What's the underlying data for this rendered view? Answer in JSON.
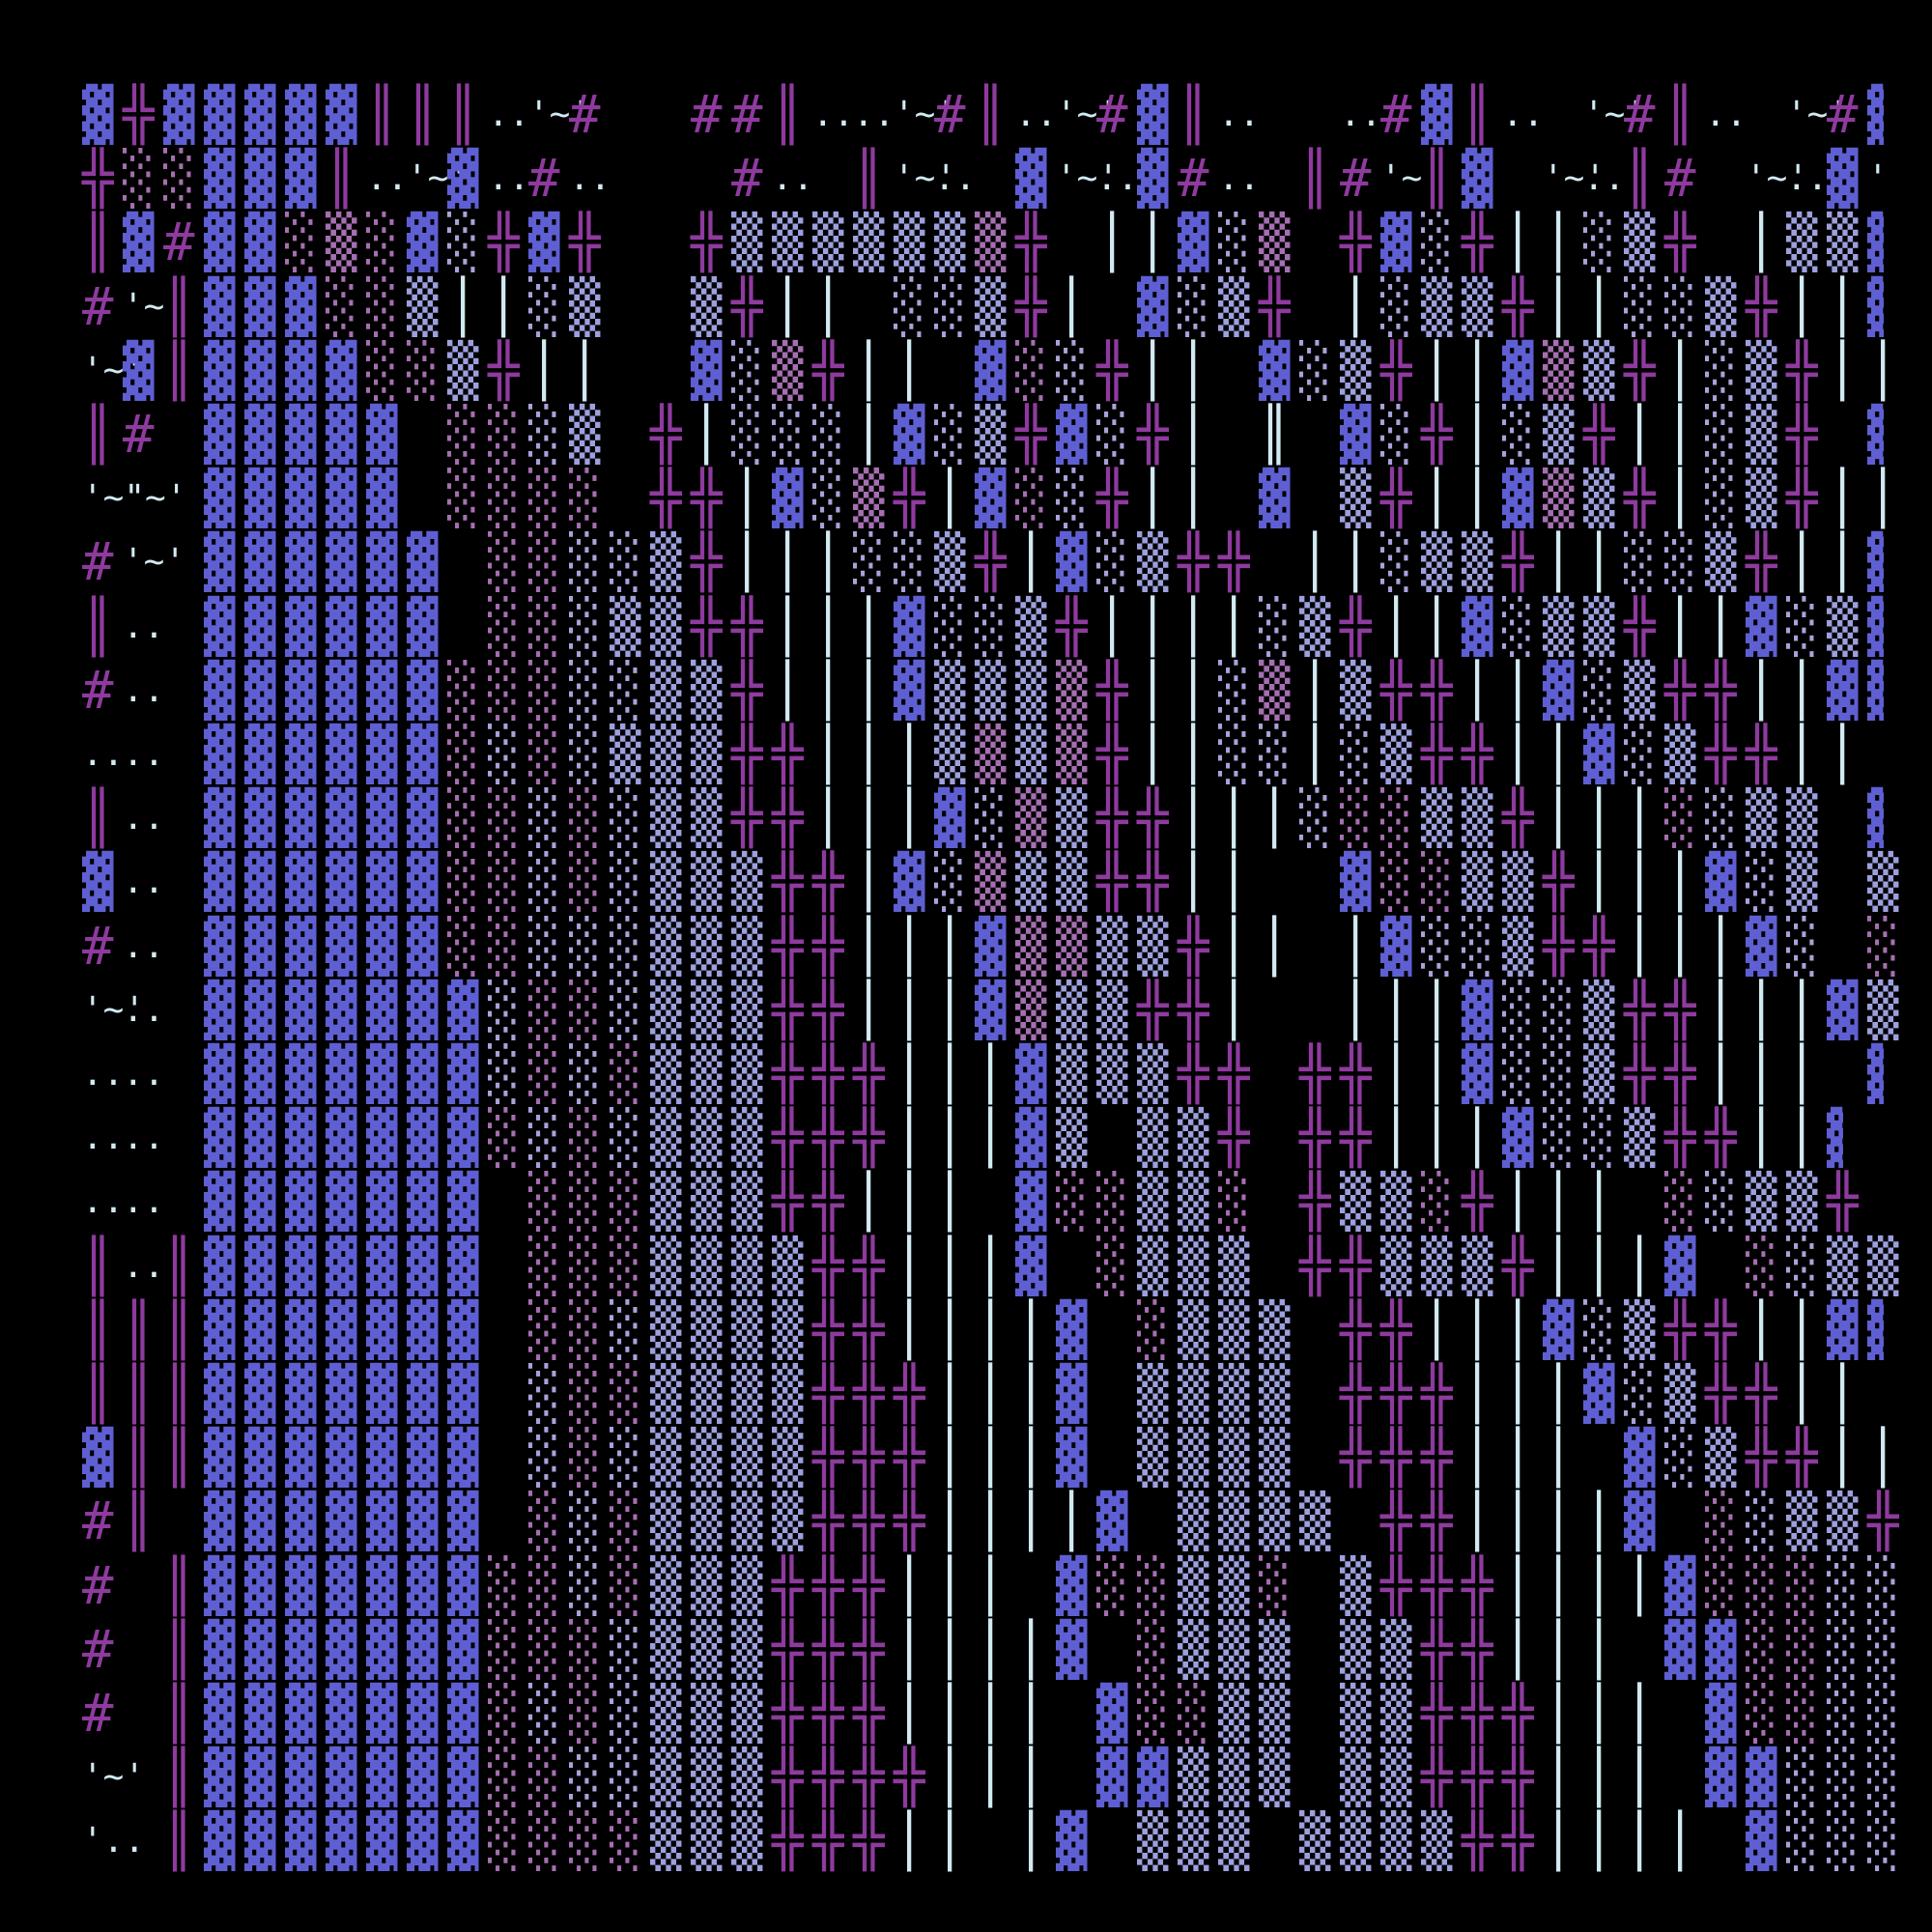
{
  "artwork": {
    "description": "generative-ascii-glyph-grid",
    "background_color": "#000000",
    "palette": {
      "indigo": "#5f5fd4",
      "periwinkle": "#9da0de",
      "lavender": "#a9a3da",
      "mauve": "#a66fb2",
      "magenta": "#8f3a9f",
      "pale_cyan": "#d2eaf2"
    },
    "glyph_legend": {
      "B": {
        "char": "▓",
        "color": "indigo"
      },
      "b": {
        "char": "▓",
        "color": "indigo",
        "clipped_right_margin": true
      },
      "S": {
        "char": "▒",
        "color": "periwinkle"
      },
      "Z": {
        "char": "▒",
        "color": "mauve"
      },
      "L": {
        "char": "░",
        "color": "lavender"
      },
      "R": {
        "char": "░",
        "color": "mauve"
      },
      "X": {
        "char": "╬",
        "color": "magenta"
      },
      "H": {
        "char": "║",
        "color": "magenta"
      },
      "V": {
        "char": "║",
        "color": "pale_cyan"
      },
      "v": {
        "char": "│",
        "color": "pale_cyan"
      },
      "#": {
        "char": "#",
        "color": "magenta"
      },
      "q": {
        "char": "'~'",
        "color": "pale_cyan",
        "small": true
      },
      "Q": {
        "char": "'~\"~'",
        "color": "pale_cyan",
        "small": true
      },
      "d": {
        "char": "..",
        "color": "pale_cyan",
        "small": true
      },
      "a": {
        "char": "'",
        "color": "pale_cyan",
        "small": true
      },
      "j": {
        "char": "'..",
        "color": "pale_cyan",
        "small": true
      }
    },
    "rows": [
      "BXBBBBBHHHdq#--##Hddq#Hdq#BHd--d#BHd-q#Hd-q#b",
      "XRRBBBHdqBd#d---#d-Hqd-BqdB#d-H#qHB-qdH#-qdBa",
      "HB#BBRZRBLXBX--XSSSSSSZX-vvBLZ-XBLXvvLSX-vSSb",
      "#qHBBBRRSvvLS--SXvv-LLSXv-BLSX-vLSSXvvLLSXvvb",
      "qBHBBBBRRSXvv--BLZXvv-BRLXvv-BLSXvvBZSXvLSXvv",
      "H#-BBBBB-RRLS-XvLLLvBLSXBLXv-V-BLXvLSXvvLSX-b",
      "Q--BBBBB-RRRR-XXvBLZXvBRLXvv-B-SXvvBZSXvLSXvv",
      "#q-BBBBBB-RRLLSXvvvLLSXvBLSXX-vvLSSXvvLLSXvvb",
      "Hd-BBBBBB-RRLSSXXvvvBLLSXvvvvLSXvvBLSSXvvBLSb",
      "#d-BBBBBBRRRLLSSXvvvBSSSZXvvLZvSXXvvBLSXXvvBb",
      "dd-BBBBBBRLRLSSSXXvvvSZSZXvvLLvLSXXvvBLSXXvv-",
      "Hd-BBBBBBRRLRLSSXXvvvBLZSXXvvvLRRSSXvvvRLSS-b",
      "Bd-BBBBBBRRLRLSSSXXvBLZSSXXvv--BRRSSXvvvBLS-S",
      "#d-BBBBBBRRLLLSSSXXvvvBZZSSXvv-vBLLSXXvvvBL-R",
      "qd-BBBBBBBLRRLSSSXXvvvBZSSXXv--vvvBLLSXXvvvBS",
      "dd-BBBBBBBLRLRSSSXXXvvvBSSSXX-XXvvBLLSXXvvv-b",
      "dd-BBBBBBBRLRLSSSXXXvvvBS-SSX-XXvvvBLLSXXvvb-",
      "dd-BBBBBBB-RRRSSSXXvvv-BRRSSR-XSSRXvvv-RLSSX-",
      "HdHBBBBBBB-RRRSSSSXXvvvB-RSSS-XXSSSXvvvB-RLSS",
      "HHHBBBBBBB-RRLSSSSXXvvvvB-RSSS-XXvvvBLSXXvvBb",
      "HHHBBBBBBB-LRRSSSSXXXvvvB-SSSS-XXXvvvBLSXXvv-",
      "BHHBBBBBBB-LRLSSSSXXXvvvB-SSSS-XXXvvv-BLSXXvv",
      "#H-BBBBBBB-RLRSSSSXXXvvvvB-SSSS-XXvvvvB-RLSSX",
      "#-HBBBBBBBRRLRSSSXXXvvv-BRRSSR-SXXXvvvvBRRRLL",
      "#-HBBBBBBBRRRLSSSXXXvvvvB-RSSS-SSXXvvv-BBRRLL",
      "#-HBBBBBBBRLRLSSSXXXvvvv-BRRSS-SSXXXvvv-BRRLL",
      "q-HBBBBBBBRRLLSSSXXXXvvv-BBSSS-SSXXXvvv-BBLLL",
      "j-HBBBBBBBRRRRSSSXXXvv-vB-SSS-SSSSXXvvvv-BLLL"
    ]
  }
}
